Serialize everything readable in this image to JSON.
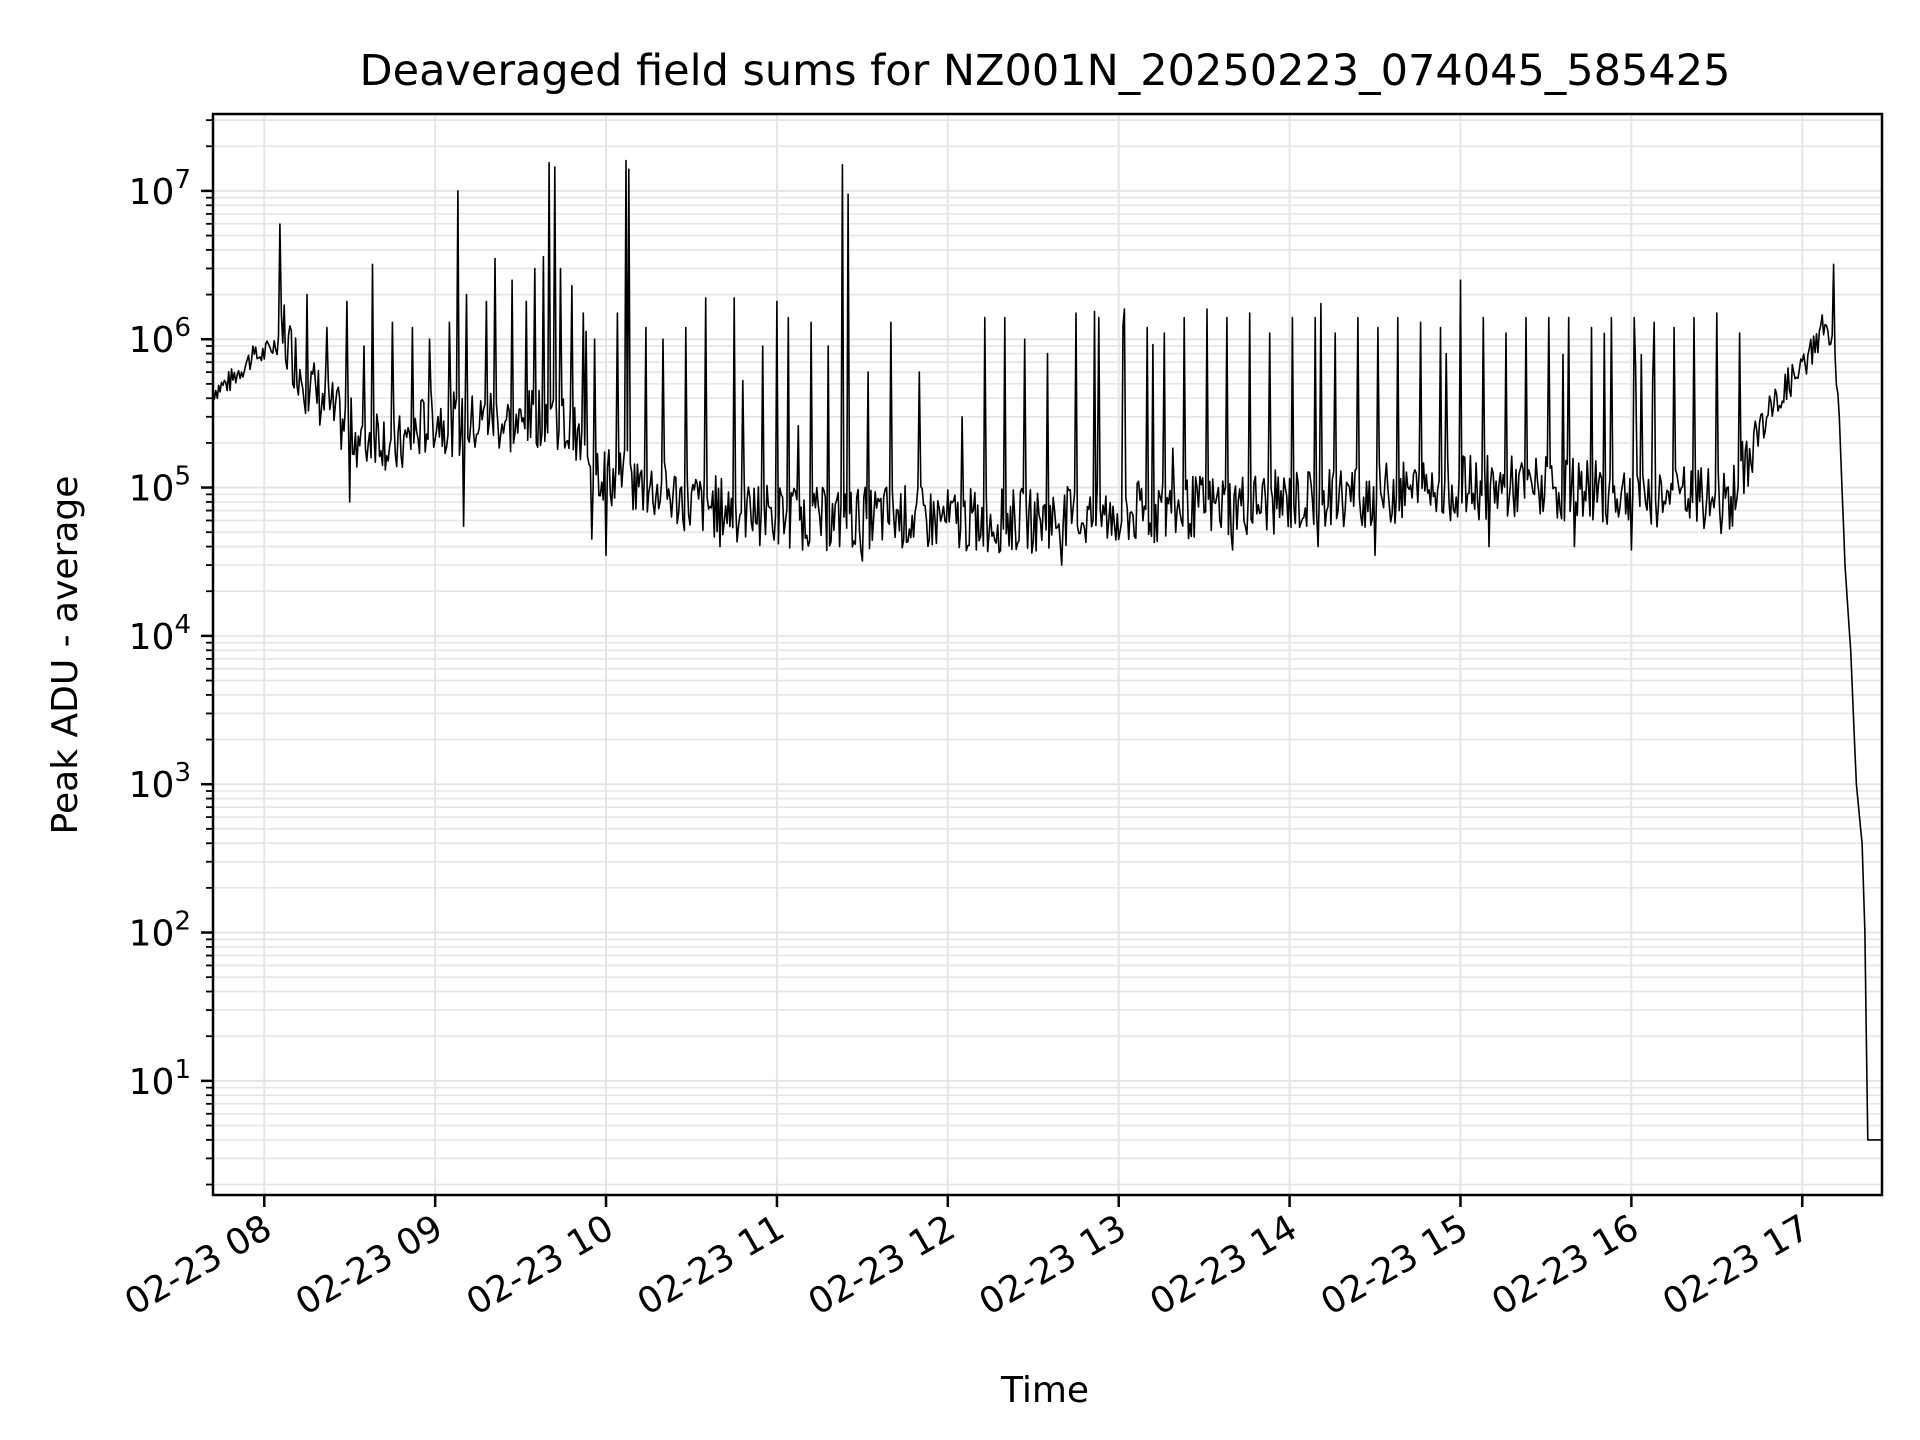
{
  "chart_data": {
    "type": "line",
    "title": "Deaveraged field sums for NZ001N_20250223_074045_585425",
    "xlabel": "Time",
    "ylabel": "Peak ADU - average",
    "yscale": "log",
    "ylim": [
      1.7,
      33000000
    ],
    "xlim": [
      "2025-02-23 07:42",
      "2025-02-23 17:28"
    ],
    "grid": true,
    "colors": {
      "line": "#000000",
      "grid": "#e5e5e5",
      "axes": "#000000"
    },
    "x_ticks": [
      {
        "time": "2025-02-23 08:00",
        "label": "02-23 08"
      },
      {
        "time": "2025-02-23 09:00",
        "label": "02-23 09"
      },
      {
        "time": "2025-02-23 10:00",
        "label": "02-23 10"
      },
      {
        "time": "2025-02-23 11:00",
        "label": "02-23 11"
      },
      {
        "time": "2025-02-23 12:00",
        "label": "02-23 12"
      },
      {
        "time": "2025-02-23 13:00",
        "label": "02-23 13"
      },
      {
        "time": "2025-02-23 14:00",
        "label": "02-23 14"
      },
      {
        "time": "2025-02-23 15:00",
        "label": "02-23 15"
      },
      {
        "time": "2025-02-23 16:00",
        "label": "02-23 16"
      },
      {
        "time": "2025-02-23 17:00",
        "label": "02-23 17"
      }
    ],
    "y_ticks": [
      {
        "value": 10,
        "base": "10",
        "exp": "1"
      },
      {
        "value": 100,
        "base": "10",
        "exp": "2"
      },
      {
        "value": 1000,
        "base": "10",
        "exp": "3"
      },
      {
        "value": 10000,
        "base": "10",
        "exp": "4"
      },
      {
        "value": 100000,
        "base": "10",
        "exp": "5"
      },
      {
        "value": 1000000,
        "base": "10",
        "exp": "6"
      },
      {
        "value": 10000000,
        "base": "10",
        "exp": "7"
      }
    ],
    "series": [
      {
        "points": [
          [
            "2025-02-23 07:42",
            450000
          ],
          [
            "2025-02-23 07:48",
            520000
          ],
          [
            "2025-02-23 07:54",
            700000
          ],
          [
            "2025-02-23 08:00",
            800000
          ],
          [
            "2025-02-23 08:06",
            1000000
          ],
          [
            "2025-02-23 08:10",
            800000
          ],
          [
            "2025-02-23 08:15",
            500000
          ],
          [
            "2025-02-23 08:20",
            400000
          ],
          [
            "2025-02-23 08:25",
            300000
          ],
          [
            "2025-02-23 08:30",
            250000
          ],
          [
            "2025-02-23 08:35",
            200000
          ],
          [
            "2025-02-23 08:40",
            250000
          ],
          [
            "2025-02-23 08:45",
            180000
          ],
          [
            "2025-02-23 08:50",
            200000
          ],
          [
            "2025-02-23 08:55",
            250000
          ],
          [
            "2025-02-23 09:00",
            300000
          ],
          [
            "2025-02-23 09:10",
            250000
          ],
          [
            "2025-02-23 09:20",
            300000
          ],
          [
            "2025-02-23 09:30",
            250000
          ],
          [
            "2025-02-23 09:40",
            350000
          ],
          [
            "2025-02-23 09:50",
            200000
          ],
          [
            "2025-02-23 10:00",
            120000
          ],
          [
            "2025-02-23 10:15",
            100000
          ],
          [
            "2025-02-23 10:30",
            80000
          ],
          [
            "2025-02-23 10:45",
            70000
          ],
          [
            "2025-02-23 11:00",
            65000
          ],
          [
            "2025-02-23 11:20",
            60000
          ],
          [
            "2025-02-23 11:40",
            65000
          ],
          [
            "2025-02-23 12:00",
            60000
          ],
          [
            "2025-02-23 12:30",
            60000
          ],
          [
            "2025-02-23 13:00",
            65000
          ],
          [
            "2025-02-23 13:30",
            75000
          ],
          [
            "2025-02-23 14:00",
            80000
          ],
          [
            "2025-02-23 14:30",
            90000
          ],
          [
            "2025-02-23 15:00",
            100000
          ],
          [
            "2025-02-23 15:30",
            100000
          ],
          [
            "2025-02-23 16:00",
            90000
          ],
          [
            "2025-02-23 16:20",
            85000
          ],
          [
            "2025-02-23 16:35",
            80000
          ],
          [
            "2025-02-23 16:45",
            250000
          ],
          [
            "2025-02-23 16:55",
            500000
          ],
          [
            "2025-02-23 17:00",
            600000
          ],
          [
            "2025-02-23 17:05",
            1000000
          ],
          [
            "2025-02-23 17:08",
            1300000
          ],
          [
            "2025-02-23 17:11",
            800000
          ],
          [
            "2025-02-23 17:13",
            300000
          ],
          [
            "2025-02-23 17:15",
            30000
          ],
          [
            "2025-02-23 17:17",
            8000
          ],
          [
            "2025-02-23 17:19",
            1000
          ],
          [
            "2025-02-23 17:21",
            400
          ],
          [
            "2025-02-23 17:22",
            100
          ],
          [
            "2025-02-23 17:23",
            4
          ],
          [
            "2025-02-23 17:28",
            4
          ]
        ],
        "spikes": [
          [
            "2025-02-23 07:56",
            900000
          ],
          [
            "2025-02-23 08:07",
            1700000
          ],
          [
            "2025-02-23 08:15",
            2000000
          ],
          [
            "2025-02-23 08:22",
            1200000
          ],
          [
            "2025-02-23 08:29",
            1800000
          ],
          [
            "2025-02-23 08:35",
            900000
          ],
          [
            "2025-02-23 08:38",
            3200000
          ],
          [
            "2025-02-23 08:45",
            1300000
          ],
          [
            "2025-02-23 08:52",
            1200000
          ],
          [
            "2025-02-23 08:58",
            1000000
          ],
          [
            "2025-02-23 09:05",
            1300000
          ],
          [
            "2025-02-23 09:08",
            10000000
          ],
          [
            "2025-02-23 09:11",
            2000000
          ],
          [
            "2025-02-23 09:18",
            1800000
          ],
          [
            "2025-02-23 09:21",
            3500000
          ],
          [
            "2025-02-23 09:27",
            2500000
          ],
          [
            "2025-02-23 09:32",
            1800000
          ],
          [
            "2025-02-23 09:35",
            3000000
          ],
          [
            "2025-02-23 09:38",
            3600000
          ],
          [
            "2025-02-23 09:40",
            15500000
          ],
          [
            "2025-02-23 09:42",
            14500000
          ],
          [
            "2025-02-23 09:44",
            3000000
          ],
          [
            "2025-02-23 09:48",
            2300000
          ],
          [
            "2025-02-23 09:52",
            1500000
          ],
          [
            "2025-02-23 09:56",
            1000000
          ],
          [
            "2025-02-23 10:04",
            1500000
          ],
          [
            "2025-02-23 10:07",
            16000000
          ],
          [
            "2025-02-23 10:08",
            14000000
          ],
          [
            "2025-02-23 10:14",
            1200000
          ],
          [
            "2025-02-23 10:20",
            1000000
          ],
          [
            "2025-02-23 10:28",
            1200000
          ],
          [
            "2025-02-23 10:35",
            1900000
          ],
          [
            "2025-02-23 10:45",
            1900000
          ],
          [
            "2025-02-23 10:55",
            900000
          ],
          [
            "2025-02-23 11:00",
            1800000
          ],
          [
            "2025-02-23 11:04",
            1400000
          ],
          [
            "2025-02-23 11:12",
            1300000
          ],
          [
            "2025-02-23 11:18",
            900000
          ],
          [
            "2025-02-23 11:23",
            15000000
          ],
          [
            "2025-02-23 11:25",
            9500000
          ],
          [
            "2025-02-23 11:32",
            600000
          ],
          [
            "2025-02-23 11:40",
            1300000
          ],
          [
            "2025-02-23 11:50",
            600000
          ],
          [
            "2025-02-23 12:05",
            300000
          ],
          [
            "2025-02-23 12:13",
            1400000
          ],
          [
            "2025-02-23 12:20",
            1400000
          ],
          [
            "2025-02-23 12:27",
            1000000
          ],
          [
            "2025-02-23 12:35",
            800000
          ],
          [
            "2025-02-23 12:45",
            1500000
          ],
          [
            "2025-02-23 12:53",
            1400000
          ],
          [
            "2025-02-23 13:02",
            1600000
          ],
          [
            "2025-02-23 13:10",
            1200000
          ],
          [
            "2025-02-23 13:16",
            1100000
          ],
          [
            "2025-02-23 13:23",
            1400000
          ],
          [
            "2025-02-23 13:31",
            1600000
          ],
          [
            "2025-02-23 13:38",
            1400000
          ],
          [
            "2025-02-23 13:46",
            1500000
          ],
          [
            "2025-02-23 13:53",
            1100000
          ],
          [
            "2025-02-23 14:01",
            1400000
          ],
          [
            "2025-02-23 14:09",
            1400000
          ],
          [
            "2025-02-23 14:16",
            1100000
          ],
          [
            "2025-02-23 14:24",
            1400000
          ],
          [
            "2025-02-23 14:31",
            1200000
          ],
          [
            "2025-02-23 14:38",
            1400000
          ],
          [
            "2025-02-23 14:46",
            1300000
          ],
          [
            "2025-02-23 14:53",
            1200000
          ],
          [
            "2025-02-23 15:00",
            2500000
          ],
          [
            "2025-02-23 15:08",
            1400000
          ],
          [
            "2025-02-23 15:16",
            1100000
          ],
          [
            "2025-02-23 15:23",
            1400000
          ],
          [
            "2025-02-23 15:31",
            1400000
          ],
          [
            "2025-02-23 15:38",
            1400000
          ],
          [
            "2025-02-23 15:46",
            1200000
          ],
          [
            "2025-02-23 15:53",
            1400000
          ],
          [
            "2025-02-23 16:01",
            1400000
          ],
          [
            "2025-02-23 16:08",
            1300000
          ],
          [
            "2025-02-23 16:15",
            1200000
          ],
          [
            "2025-02-23 16:22",
            1400000
          ],
          [
            "2025-02-23 16:30",
            1500000
          ],
          [
            "2025-02-23 16:38",
            1100000
          ],
          [
            "2025-02-23 17:11",
            3200000
          ]
        ],
        "dips": [
          [
            "2025-02-23 08:30",
            80000
          ],
          [
            "2025-02-23 08:45",
            60000
          ],
          [
            "2025-02-23 09:10",
            55000
          ],
          [
            "2025-02-23 09:35",
            55000
          ],
          [
            "2025-02-23 09:55",
            45000
          ],
          [
            "2025-02-23 10:00",
            35000
          ],
          [
            "2025-02-23 10:20",
            40000
          ],
          [
            "2025-02-23 10:40",
            40000
          ],
          [
            "2025-02-23 11:00",
            38000
          ],
          [
            "2025-02-23 11:30",
            32000
          ],
          [
            "2025-02-23 11:50",
            38000
          ],
          [
            "2025-02-23 12:10",
            38000
          ],
          [
            "2025-02-23 12:40",
            30000
          ],
          [
            "2025-02-23 13:10",
            35000
          ],
          [
            "2025-02-23 13:40",
            38000
          ],
          [
            "2025-02-23 14:10",
            40000
          ],
          [
            "2025-02-23 14:30",
            35000
          ],
          [
            "2025-02-23 15:10",
            40000
          ],
          [
            "2025-02-23 15:40",
            40000
          ],
          [
            "2025-02-23 16:00",
            38000
          ],
          [
            "2025-02-23 16:30",
            45000
          ]
        ]
      }
    ]
  }
}
